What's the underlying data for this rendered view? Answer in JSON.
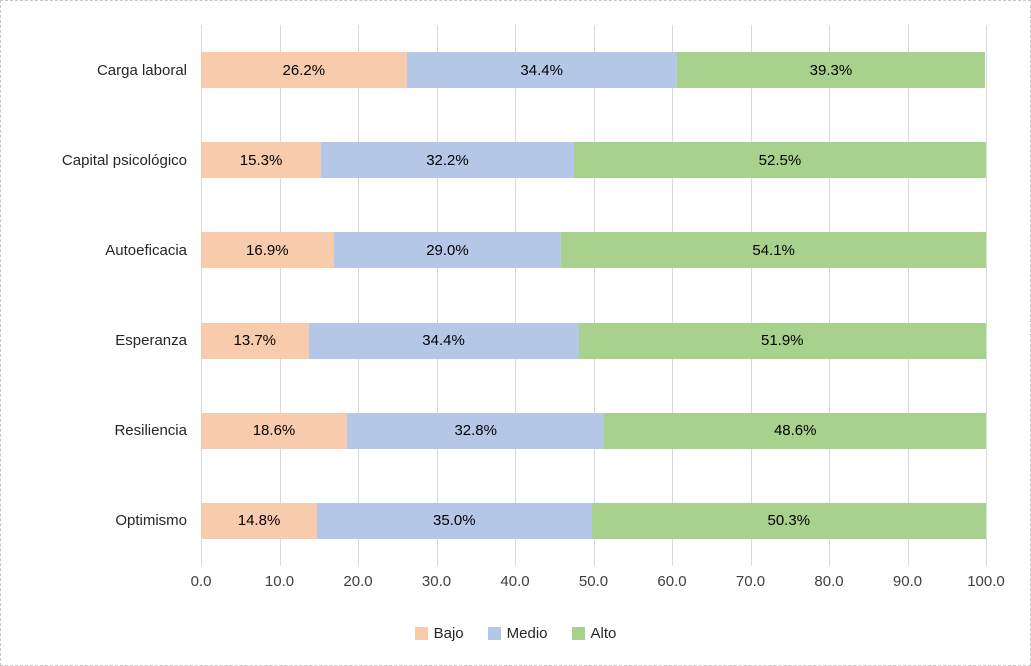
{
  "chart_data": {
    "type": "bar",
    "orientation": "horizontal",
    "stacked": true,
    "title": "",
    "xlabel": "",
    "ylabel": "",
    "categories": [
      "Carga laboral",
      "Capital psicológico",
      "Autoeficacia",
      "Esperanza",
      "Resiliencia",
      "Optimismo"
    ],
    "series": [
      {
        "name": "Bajo",
        "color": "#F8CBAD",
        "values": [
          26.2,
          15.3,
          16.9,
          13.7,
          18.6,
          14.8
        ]
      },
      {
        "name": "Medio",
        "color": "#B4C7E7",
        "values": [
          34.4,
          32.2,
          29.0,
          34.4,
          32.8,
          35.0
        ]
      },
      {
        "name": "Alto",
        "color": "#A9D18E",
        "values": [
          39.3,
          52.5,
          54.1,
          51.9,
          48.6,
          50.3
        ]
      }
    ],
    "data_label_suffix": "%",
    "x_axis": {
      "min": 0,
      "max": 100,
      "tick_labels": [
        "0.0",
        "10.0",
        "20.0",
        "30.0",
        "40.0",
        "50.0",
        "60.0",
        "70.0",
        "80.0",
        "90.0",
        "100.0"
      ]
    },
    "legend": {
      "position": "bottom",
      "labels": [
        "Bajo",
        "Medio",
        "Alto"
      ]
    },
    "grid": true,
    "colors": {
      "gridline": "#d9d9d9",
      "axis_text": "#404040",
      "category_text": "#262626",
      "data_label_text": "#000000",
      "background": "#ffffff"
    }
  }
}
